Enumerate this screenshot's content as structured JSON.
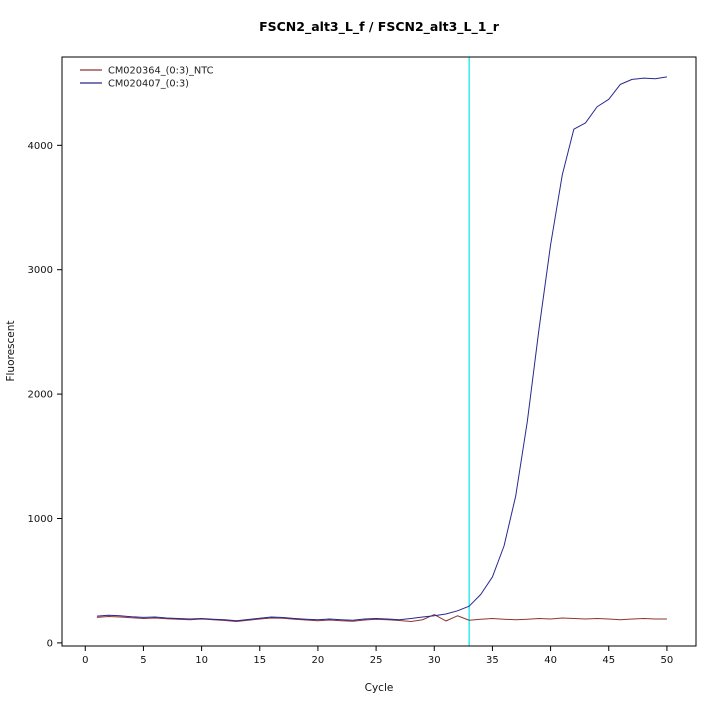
{
  "chart_data": {
    "type": "line",
    "title": "FSCN2_alt3_L_f / FSCN2_alt3_L_1_r",
    "xlabel": "Cycle",
    "ylabel": "Fluorescent",
    "xlim": [
      -2,
      52.5
    ],
    "ylim": [
      -25,
      4710
    ],
    "x_ticks": [
      0,
      5,
      10,
      15,
      20,
      25,
      30,
      35,
      40,
      45,
      50
    ],
    "y_ticks": [
      0,
      1000,
      2000,
      3000,
      4000
    ],
    "grid": false,
    "legend_position": "top-left",
    "threshold_cycle": 33,
    "threshold_color": "#00e5ee",
    "x": [
      1,
      2,
      3,
      4,
      5,
      6,
      7,
      8,
      9,
      10,
      11,
      12,
      13,
      14,
      15,
      16,
      17,
      18,
      19,
      20,
      21,
      22,
      23,
      24,
      25,
      26,
      27,
      28,
      29,
      30,
      31,
      32,
      33,
      34,
      35,
      36,
      37,
      38,
      39,
      40,
      41,
      42,
      43,
      44,
      45,
      46,
      47,
      48,
      49,
      50
    ],
    "series": [
      {
        "name": "CM020364_(0:3)_NTC",
        "color": "#8f3434",
        "values": [
          205,
          212,
          208,
          202,
          196,
          200,
          194,
          190,
          186,
          192,
          186,
          180,
          172,
          182,
          192,
          200,
          198,
          190,
          184,
          178,
          184,
          178,
          174,
          184,
          190,
          186,
          180,
          172,
          186,
          228,
          176,
          218,
          182,
          190,
          196,
          190,
          186,
          190,
          196,
          192,
          200,
          196,
          192,
          196,
          192,
          186,
          192,
          196,
          192,
          192
        ]
      },
      {
        "name": "CM020407_(0:3)",
        "color": "#28288f",
        "values": [
          215,
          222,
          218,
          210,
          205,
          208,
          200,
          196,
          192,
          196,
          190,
          186,
          178,
          188,
          198,
          208,
          204,
          196,
          190,
          186,
          192,
          186,
          182,
          192,
          196,
          192,
          186,
          196,
          208,
          218,
          232,
          258,
          295,
          390,
          530,
          780,
          1180,
          1780,
          2520,
          3200,
          3760,
          4130,
          4180,
          4310,
          4370,
          4490,
          4530,
          4540,
          4535,
          4550
        ]
      }
    ]
  }
}
